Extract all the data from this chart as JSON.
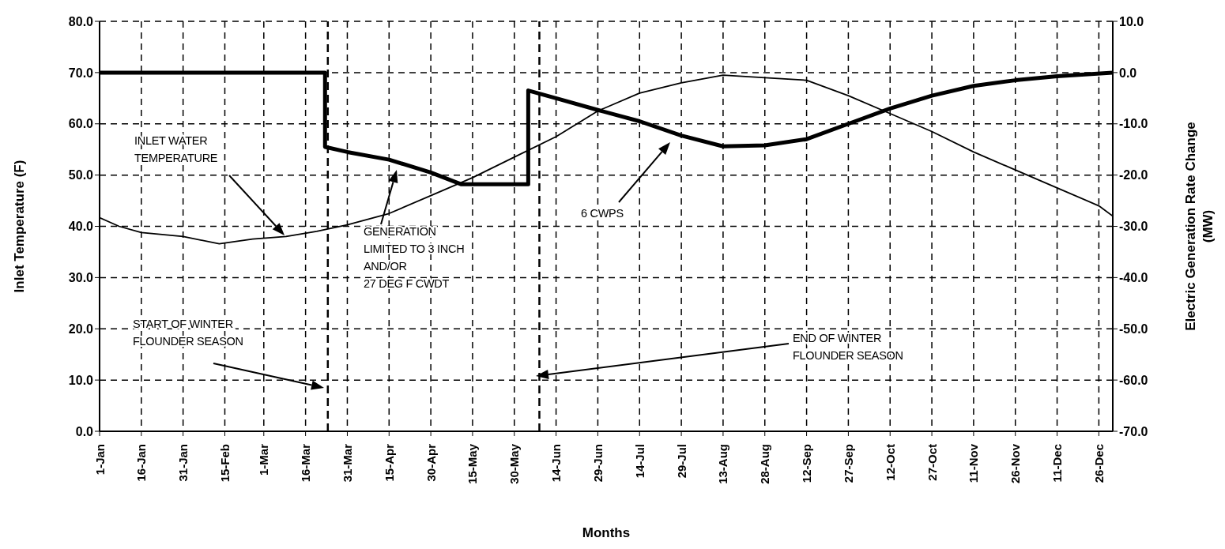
{
  "chart_data": {
    "type": "line",
    "xlabel": "Months",
    "ylabel": "Inlet Temperature (F)",
    "y2label": "Electric Generation Rate Change (MW)",
    "xlim": [
      "--01-01",
      "--12-31"
    ],
    "xticks": [
      {
        "value": "--01-01",
        "label": "1-Jan"
      },
      {
        "value": "--01-16",
        "label": "16-Jan"
      },
      {
        "value": "--01-31",
        "label": "31-Jan"
      },
      {
        "value": "--02-15",
        "label": "15-Feb"
      },
      {
        "value": "--03-01",
        "label": "1-Mar"
      },
      {
        "value": "--03-16",
        "label": "16-Mar"
      },
      {
        "value": "--03-31",
        "label": "31-Mar"
      },
      {
        "value": "--04-15",
        "label": "15-Apr"
      },
      {
        "value": "--04-30",
        "label": "30-Apr"
      },
      {
        "value": "--05-15",
        "label": "15-May"
      },
      {
        "value": "--05-30",
        "label": "30-May"
      },
      {
        "value": "--06-14",
        "label": "14-Jun"
      },
      {
        "value": "--06-29",
        "label": "29-Jun"
      },
      {
        "value": "--07-14",
        "label": "14-Jul"
      },
      {
        "value": "--07-29",
        "label": "29-Jul"
      },
      {
        "value": "--08-13",
        "label": "13-Aug"
      },
      {
        "value": "--08-28",
        "label": "28-Aug"
      },
      {
        "value": "--09-12",
        "label": "12-Sep"
      },
      {
        "value": "--09-27",
        "label": "27-Sep"
      },
      {
        "value": "--10-12",
        "label": "12-Oct"
      },
      {
        "value": "--10-27",
        "label": "27-Oct"
      },
      {
        "value": "--11-11",
        "label": "11-Nov"
      },
      {
        "value": "--11-26",
        "label": "26-Nov"
      },
      {
        "value": "--12-11",
        "label": "11-Dec"
      },
      {
        "value": "--12-26",
        "label": "26-Dec"
      }
    ],
    "ylim": [
      0,
      80
    ],
    "yticks": [
      {
        "value": 0,
        "label": "0.0"
      },
      {
        "value": 10,
        "label": "10.0"
      },
      {
        "value": 20,
        "label": "20.0"
      },
      {
        "value": 30,
        "label": "30.0"
      },
      {
        "value": 40,
        "label": "40.0"
      },
      {
        "value": 50,
        "label": "50.0"
      },
      {
        "value": 60,
        "label": "60.0"
      },
      {
        "value": 70,
        "label": "70.0"
      },
      {
        "value": 80,
        "label": "80.0"
      }
    ],
    "y2lim": [
      -70,
      10
    ],
    "y2ticks": [
      {
        "value": -70,
        "label": "-70.0"
      },
      {
        "value": -60,
        "label": "-60.0"
      },
      {
        "value": -50,
        "label": "-50.0"
      },
      {
        "value": -40,
        "label": "-40.0"
      },
      {
        "value": -30,
        "label": "-30.0"
      },
      {
        "value": -20,
        "label": "-20.0"
      },
      {
        "value": -10,
        "label": "-10.0"
      },
      {
        "value": 0,
        "label": "0.0"
      },
      {
        "value": 10,
        "label": "10.0"
      }
    ],
    "grid": true,
    "series": [
      {
        "color": "#000000",
        "x": [
          "--01-01",
          "--01-08",
          "--01-16",
          "--01-31",
          "--02-13",
          "--02-25",
          "--03-09",
          "--03-20",
          "--03-31",
          "--04-15",
          "--04-30",
          "--05-15",
          "--05-30",
          "--06-14",
          "--06-29",
          "--07-14",
          "--07-29",
          "--08-13",
          "--08-28",
          "--09-12",
          "--09-27",
          "--10-12",
          "--10-27",
          "--11-11",
          "--11-26",
          "--12-11",
          "--12-26",
          "--12-31"
        ],
        "values": [
          41.7,
          40,
          38.8,
          38,
          36.6,
          37.5,
          38,
          39,
          40.3,
          42.5,
          46,
          49.5,
          53.5,
          57.5,
          62.5,
          66,
          68,
          69.5,
          69,
          68.5,
          65.5,
          62,
          58.5,
          54.5,
          51,
          47.5,
          44,
          42
        ]
      },
      {
        "color": "#000000",
        "axis": "y2",
        "x": [
          "--01-01",
          "--03-23",
          "--03-23",
          "--03-31",
          "--04-15",
          "--04-30",
          "--05-11",
          "--06-04",
          "--06-04",
          "--06-14",
          "--06-29",
          "--07-14",
          "--07-29",
          "--08-13",
          "--08-28",
          "--09-12",
          "--09-27",
          "--10-12",
          "--10-27",
          "--11-11",
          "--11-26",
          "--12-11",
          "--12-31"
        ],
        "values": [
          0,
          0,
          -14.5,
          -15.5,
          -17,
          -19.5,
          -21.8,
          -21.8,
          -3.5,
          -5,
          -7.3,
          -9.5,
          -12.3,
          -14.4,
          -14.2,
          -13,
          -10,
          -7,
          -4.5,
          -2.6,
          -1.5,
          -0.7,
          0
        ]
      }
    ],
    "ref_lines": [
      {
        "axis": "x",
        "value": "--03-24",
        "color": "#000000",
        "line_style": "dashed"
      },
      {
        "axis": "x",
        "value": "--06-08",
        "color": "#000000",
        "line_style": "dashed"
      }
    ],
    "annotations": [
      "INLET WATER\nTEMPERATURE",
      "GENERATION\nLIMITED  TO 3 INCH\nAND/OR\n27 DEG F CWDT",
      "6 CWPS",
      "START OF WINTER\nFLOUNDER SEASON",
      "END OF WINTER\nFLOUNDER SEASON"
    ]
  }
}
